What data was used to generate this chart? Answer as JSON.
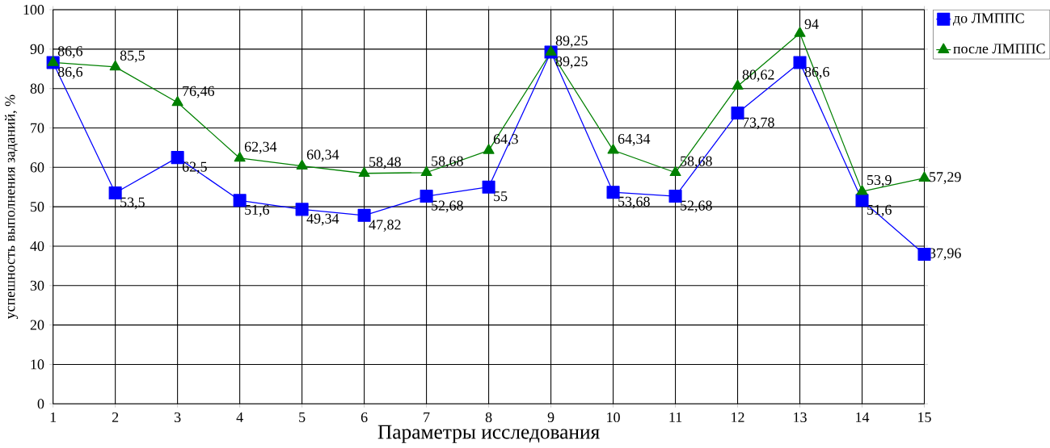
{
  "chart_data": {
    "type": "line",
    "xlabel": "Параметры исследования",
    "ylabel": "успешность выполнения заданий, %",
    "x": [
      1,
      2,
      3,
      4,
      5,
      6,
      7,
      8,
      9,
      10,
      11,
      12,
      13,
      14,
      15
    ],
    "xlim": [
      1,
      15
    ],
    "xticks": [
      1,
      2,
      3,
      4,
      5,
      6,
      7,
      8,
      9,
      10,
      11,
      12,
      13,
      14,
      15
    ],
    "ylim": [
      0,
      100
    ],
    "yticks": [
      0,
      10,
      20,
      30,
      40,
      50,
      60,
      70,
      80,
      90,
      100
    ],
    "grid": true,
    "legend": "top right",
    "series": [
      {
        "name": "до ЛМППС",
        "color": "#0000ff",
        "marker": "square",
        "values": [
          86.6,
          53.5,
          62.5,
          51.6,
          49.34,
          47.82,
          52.68,
          55,
          89.25,
          53.68,
          52.68,
          73.78,
          86.6,
          51.6,
          37.96
        ],
        "value_labels": [
          "86,6",
          "53,5",
          "62,5",
          "51,6",
          "49,34",
          "47,82",
          "52,68",
          "55",
          "89,25",
          "53,68",
          "52,68",
          "73,78",
          "86,6",
          "51,6",
          "37,96"
        ]
      },
      {
        "name": "после ЛМППС",
        "color": "#008000",
        "marker": "triangle",
        "values": [
          86.6,
          85.5,
          76.46,
          62.34,
          60.34,
          58.48,
          58.68,
          64.3,
          89.25,
          64.34,
          58.68,
          80.62,
          94,
          53.9,
          57.29
        ],
        "value_labels": [
          "86,6",
          "85,5",
          "76,46",
          "62,34",
          "60,34",
          "58,48",
          "58,68",
          "64,3",
          "89,25",
          "64,34",
          "58,68",
          "80,62",
          "94",
          "53,9",
          "57,29"
        ]
      }
    ]
  }
}
